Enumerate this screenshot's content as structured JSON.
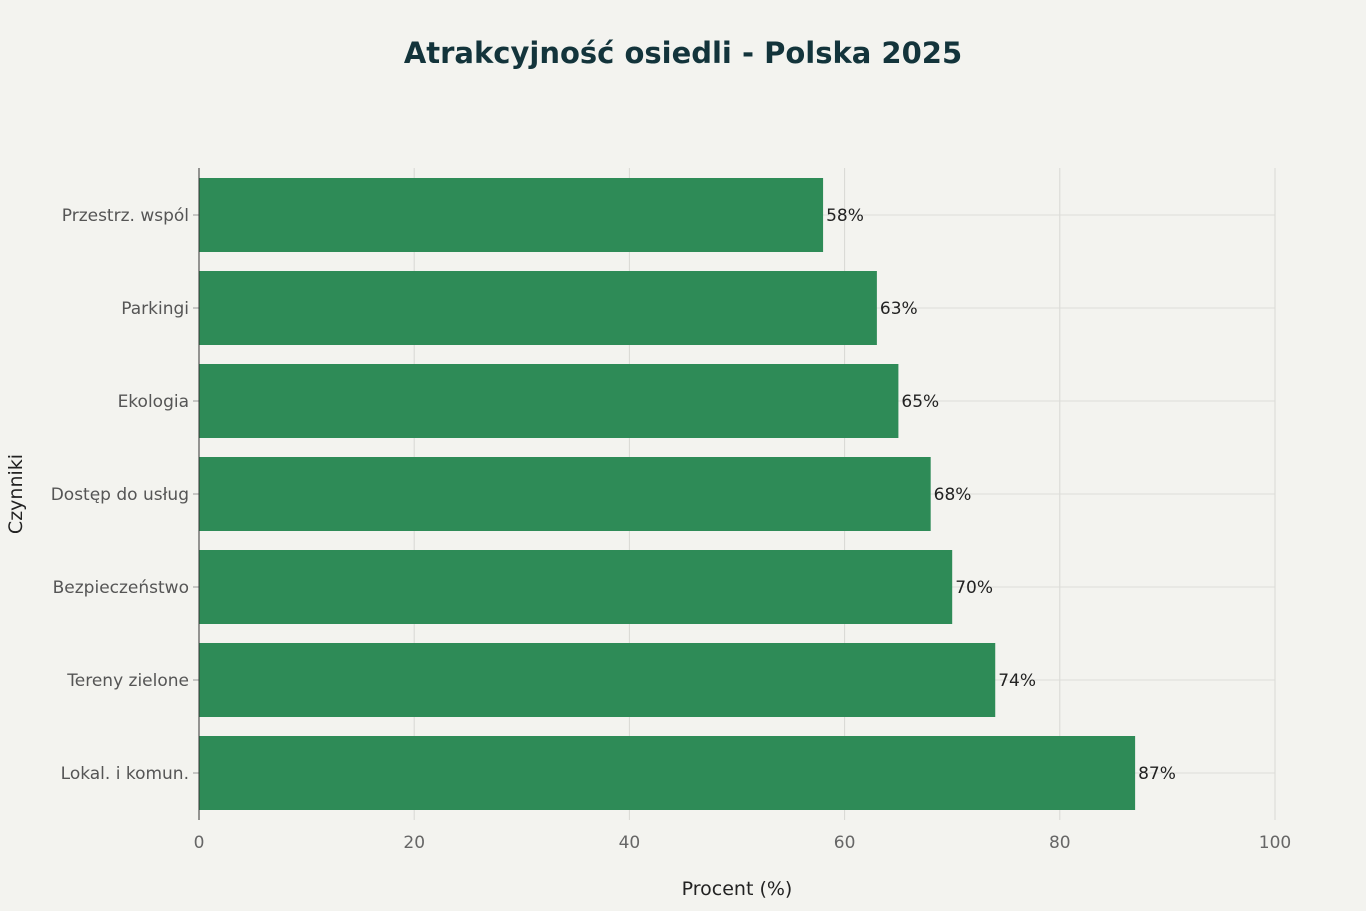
{
  "chart_data": {
    "type": "bar",
    "orientation": "horizontal",
    "title": "Atrakcyjność osiedli - Polska 2025",
    "xlabel": "Procent (%)",
    "ylabel": "Czynniki",
    "xlim": [
      0,
      100
    ],
    "xticks": [
      0,
      20,
      40,
      60,
      80,
      100
    ],
    "grid": true,
    "categories": [
      "Przestrz. wspól",
      "Parkingi",
      "Ekologia",
      "Dostęp do usług",
      "Bezpieczeństwo",
      "Tereny zielone",
      "Lokal. i komun."
    ],
    "values": [
      58,
      63,
      65,
      68,
      70,
      74,
      87
    ],
    "data_labels": [
      "58%",
      "63%",
      "65%",
      "68%",
      "70%",
      "74%",
      "87%"
    ],
    "bar_color": "#2e8b57"
  }
}
